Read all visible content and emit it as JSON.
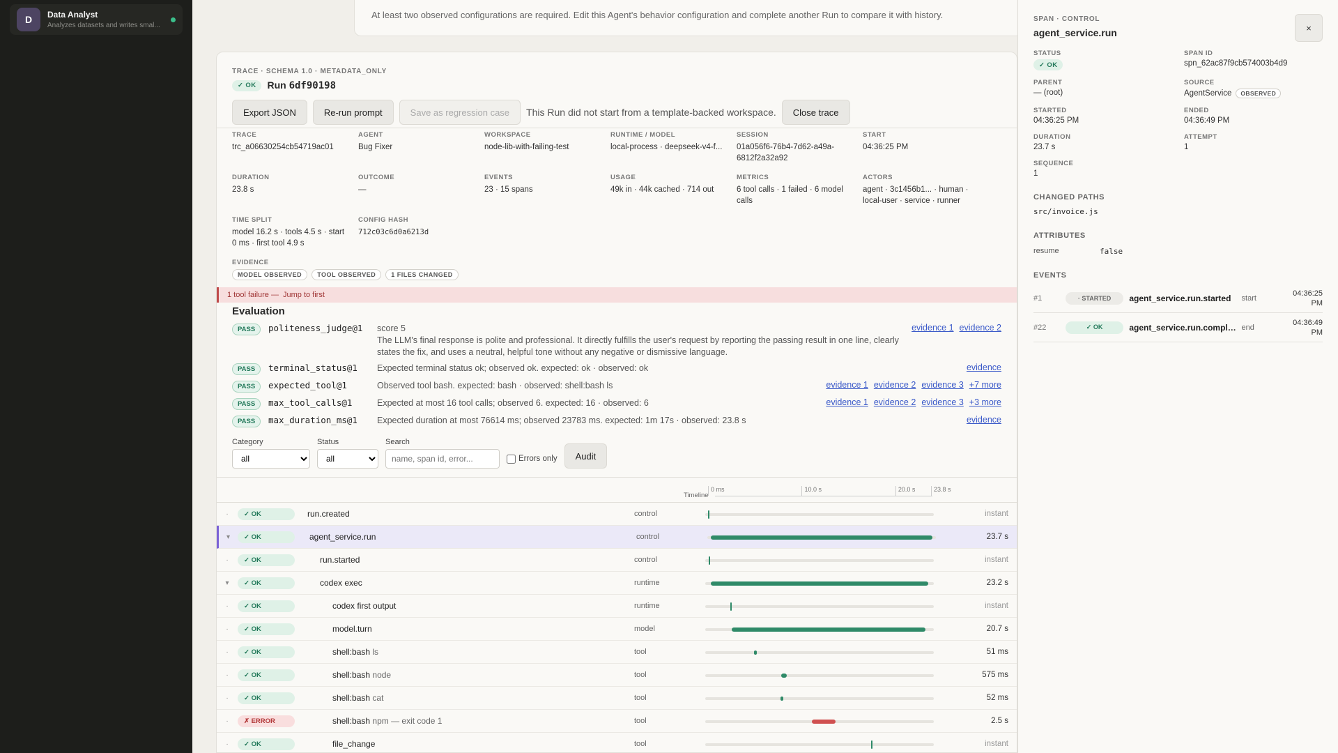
{
  "agent": {
    "initial": "D",
    "name": "Data Analyst",
    "description": "Analyzes datasets and writes smal..."
  },
  "notice": "At least two observed configurations are required. Edit this Agent's behavior configuration and complete another Run to compare it with history.",
  "trace": {
    "kicker": "TRACE · SCHEMA 1.0 · METADATA_ONLY",
    "status": "✓ OK",
    "run_label": "Run",
    "run_id": "6df90198",
    "buttons": {
      "export": "Export JSON",
      "rerun": "Re-run prompt",
      "regression": "Save as regression case",
      "close": "Close trace"
    },
    "template_note": "This Run did not start from a template-backed workspace.",
    "meta": [
      {
        "label": "TRACE",
        "value": "trc_a06630254cb54719ac01"
      },
      {
        "label": "AGENT",
        "value": "Bug Fixer"
      },
      {
        "label": "WORKSPACE",
        "value": "node-lib-with-failing-test"
      },
      {
        "label": "RUNTIME / MODEL",
        "value": "local-process · deepseek-v4-f..."
      },
      {
        "label": "SESSION",
        "value": "01a056f6-76b4-7d62-a49a-6812f2a32a92"
      },
      {
        "label": "START",
        "value": "04:36:25 PM"
      },
      {
        "label": "DURATION",
        "value": "23.8 s"
      },
      {
        "label": "OUTCOME",
        "value": "—"
      },
      {
        "label": "EVENTS",
        "value": "23 · 15 spans"
      },
      {
        "label": "USAGE",
        "value": "49k in · 44k cached · 714 out"
      },
      {
        "label": "METRICS",
        "value": "6 tool calls · 1 failed · 6 model calls"
      },
      {
        "label": "ACTORS",
        "value": "agent · 3c1456b1... · human · local-user · service · runner"
      },
      {
        "label": "TIME SPLIT",
        "value": "model 16.2 s · tools 4.5 s · start 0 ms · first tool 4.9 s"
      },
      {
        "label": "CONFIG HASH",
        "value": "712c03c6d0a6213d"
      }
    ],
    "evidence_label": "EVIDENCE",
    "evidence_chips": [
      "MODEL OBSERVED",
      "TOOL OBSERVED",
      "1 FILES CHANGED"
    ]
  },
  "failure_banner": {
    "text": "1 tool failure —",
    "link": "Jump to first"
  },
  "evaluation": {
    "title": "Evaluation",
    "rows": [
      {
        "badge": "PASS",
        "judge": "politeness_judge@1",
        "text": "score 5",
        "detail": "The LLM's final response is polite and professional. It directly fulfills the user's request by reporting the passing result in one line, clearly states the fix, and uses a neutral, helpful tone without any negative or dismissive language.",
        "links": [
          "evidence 1",
          "evidence 2"
        ]
      },
      {
        "badge": "PASS",
        "judge": "terminal_status@1",
        "text": "Expected terminal status ok; observed ok.  expected: ok · observed: ok",
        "detail": "",
        "links": [
          "evidence"
        ]
      },
      {
        "badge": "PASS",
        "judge": "expected_tool@1",
        "text": "Observed tool bash.  expected: bash · observed: shell:bash ls",
        "detail": "",
        "links": [
          "evidence 1",
          "evidence 2",
          "evidence 3",
          "+7 more"
        ]
      },
      {
        "badge": "PASS",
        "judge": "max_tool_calls@1",
        "text": "Expected at most 16 tool calls; observed 6.  expected: 16 · observed: 6",
        "detail": "",
        "links": [
          "evidence 1",
          "evidence 2",
          "evidence 3",
          "+3 more"
        ]
      },
      {
        "badge": "PASS",
        "judge": "max_duration_ms@1",
        "text": "Expected duration at most 76614 ms; observed 23783 ms.  expected: 1m 17s · observed: 23.8 s",
        "detail": "",
        "links": [
          "evidence"
        ]
      }
    ]
  },
  "filters": {
    "category_label": "Category",
    "category_value": "all",
    "status_label": "Status",
    "status_value": "all",
    "search_label": "Search",
    "search_placeholder": "name, span id, error...",
    "errors_only": "Errors only",
    "audit": "Audit"
  },
  "timeline": {
    "label": "Timeline",
    "total_s": 23.8,
    "ticks": [
      {
        "label": "0 ms",
        "s": 0
      },
      {
        "label": "10.0 s",
        "s": 10
      },
      {
        "label": "20.0 s",
        "s": 20
      },
      {
        "label": "23.8 s",
        "s": 23.8
      }
    ],
    "spans": [
      {
        "caret": "·",
        "status": "ok",
        "status_label": "✓ OK",
        "name": "run.created",
        "sub": "",
        "depth": 0,
        "category": "control",
        "start_s": 0.0,
        "dur_s": 0,
        "duration": "instant"
      },
      {
        "caret": "▾",
        "status": "ok",
        "status_label": "✓ OK",
        "name": "agent_service.run",
        "sub": "",
        "depth": 0,
        "category": "control",
        "start_s": 0.05,
        "dur_s": 23.7,
        "duration": "23.7 s",
        "selected": true
      },
      {
        "caret": "·",
        "status": "ok",
        "status_label": "✓ OK",
        "name": "run.started",
        "sub": "",
        "depth": 1,
        "category": "control",
        "start_s": 0.1,
        "dur_s": 0,
        "duration": "instant"
      },
      {
        "caret": "▾",
        "status": "ok",
        "status_label": "✓ OK",
        "name": "codex exec",
        "sub": "",
        "depth": 1,
        "category": "runtime",
        "start_s": 0.3,
        "dur_s": 23.2,
        "duration": "23.2 s"
      },
      {
        "caret": "·",
        "status": "ok",
        "status_label": "✓ OK",
        "name": "codex first output",
        "sub": "",
        "depth": 2,
        "category": "runtime",
        "start_s": 2.4,
        "dur_s": 0,
        "duration": "instant"
      },
      {
        "caret": "·",
        "status": "ok",
        "status_label": "✓ OK",
        "name": "model.turn",
        "sub": "",
        "depth": 2,
        "category": "model",
        "start_s": 2.5,
        "dur_s": 20.7,
        "duration": "20.7 s"
      },
      {
        "caret": "·",
        "status": "ok",
        "status_label": "✓ OK",
        "name": "shell:bash",
        "sub": "ls",
        "depth": 2,
        "category": "tool",
        "start_s": 4.9,
        "dur_s": 0.051,
        "duration": "51 ms"
      },
      {
        "caret": "·",
        "status": "ok",
        "status_label": "✓ OK",
        "name": "shell:bash",
        "sub": "node",
        "depth": 2,
        "category": "tool",
        "start_s": 7.8,
        "dur_s": 0.575,
        "duration": "575 ms"
      },
      {
        "caret": "·",
        "status": "ok",
        "status_label": "✓ OK",
        "name": "shell:bash",
        "sub": "cat",
        "depth": 2,
        "category": "tool",
        "start_s": 7.7,
        "dur_s": 0.052,
        "duration": "52 ms"
      },
      {
        "caret": "·",
        "status": "error",
        "status_label": "✗ ERROR",
        "name": "shell:bash",
        "sub": "npm — exit code 1",
        "depth": 2,
        "category": "tool",
        "start_s": 11.1,
        "dur_s": 2.5,
        "duration": "2.5 s"
      },
      {
        "caret": "·",
        "status": "ok",
        "status_label": "✓ OK",
        "name": "file_change",
        "sub": "",
        "depth": 2,
        "category": "tool",
        "start_s": 17.4,
        "dur_s": 0,
        "duration": "instant"
      }
    ]
  },
  "panel": {
    "kicker": "SPAN · CONTROL",
    "title": "agent_service.run",
    "close": "×",
    "fields": [
      {
        "label": "STATUS",
        "value": "✓ OK",
        "pill": true
      },
      {
        "label": "SPAN ID",
        "value": "spn_62ac87f9cb574003b4d9"
      },
      {
        "label": "PARENT",
        "value": "— (root)"
      },
      {
        "label": "SOURCE",
        "value": "AgentService",
        "badge": "OBSERVED"
      },
      {
        "label": "STARTED",
        "value": "04:36:25 PM"
      },
      {
        "label": "ENDED",
        "value": "04:36:49 PM"
      },
      {
        "label": "DURATION",
        "value": "23.7 s"
      },
      {
        "label": "ATTEMPT",
        "value": "1"
      },
      {
        "label": "SEQUENCE",
        "value": "1"
      }
    ],
    "changed_paths_title": "CHANGED PATHS",
    "changed_paths": [
      "src/invoice.js"
    ],
    "attributes_title": "ATTRIBUTES",
    "attributes": [
      {
        "key": "resume",
        "value": "false"
      }
    ],
    "events_title": "EVENTS",
    "events": [
      {
        "index": "#1",
        "status": "start",
        "label": "· STARTED",
        "name": "agent_service.run.started",
        "phase": "start",
        "time": "04:36:25 PM"
      },
      {
        "index": "#22",
        "status": "ok",
        "label": "✓ OK",
        "name": "agent_service.run.comple...",
        "phase": "end",
        "time": "04:36:49 PM"
      }
    ]
  },
  "colors": {
    "ok": "#2f8a68",
    "error": "#d05050",
    "accent": "#7b62d6",
    "link": "#3b5ac9"
  }
}
